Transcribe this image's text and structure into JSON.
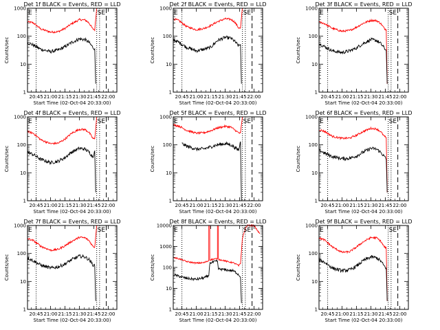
{
  "colors": {
    "events": "#000000",
    "lld": "#ff0000",
    "axes": "#000000",
    "background": "#ffffff"
  },
  "chart_data": [
    {
      "type": "line",
      "title": "Det 1f BLACK = Events, RED = LLD",
      "xlabel": "Start Time (02-Oct-04 20:33:00)",
      "ylabel": "Counts/sec",
      "yscale": "log",
      "ylim": [
        1,
        1000
      ],
      "ytick_labels": [
        "1",
        "10",
        "100",
        "1000"
      ],
      "xlim": [
        "20:36",
        "22:09"
      ],
      "xtick_labels": [
        "20:45",
        "21:00",
        "21:15",
        "21:30",
        "21:45",
        "22:00"
      ],
      "markers": [
        "E",
        "SE"
      ],
      "vlines": [
        "20:45",
        "21:48",
        "21:51",
        "21:58"
      ],
      "series": [
        {
          "name": "LLD",
          "color": "red",
          "x": [
            "20:36",
            "20:42",
            "20:50",
            "21:00",
            "21:08",
            "21:15",
            "21:22",
            "21:30",
            "21:36",
            "21:40",
            "21:44",
            "21:46",
            "21:48"
          ],
          "y": [
            330,
            300,
            180,
            140,
            145,
            190,
            280,
            390,
            380,
            300,
            180,
            170,
            1000
          ]
        },
        {
          "name": "Events",
          "color": "black",
          "x": [
            "20:36",
            "20:42",
            "20:50",
            "21:00",
            "21:08",
            "21:15",
            "21:22",
            "21:30",
            "21:36",
            "21:40",
            "21:44",
            "21:46",
            "21:47"
          ],
          "y": [
            60,
            48,
            34,
            28,
            32,
            42,
            60,
            80,
            75,
            60,
            40,
            35,
            2
          ]
        }
      ]
    },
    {
      "type": "line",
      "title": "Det 2f BLACK = Events, RED = LLD",
      "xlabel": "Start Time (02-Oct-04 20:33:00)",
      "ylabel": "Counts/sec",
      "yscale": "log",
      "ylim": [
        1,
        1000
      ],
      "ytick_labels": [
        "1",
        "10",
        "100",
        "1000"
      ],
      "xlim": [
        "20:36",
        "22:09"
      ],
      "xtick_labels": [
        "20:45",
        "21:00",
        "21:15",
        "21:30",
        "21:45",
        "22:00"
      ],
      "markers": [
        "E",
        "SE"
      ],
      "vlines": [
        "20:45",
        "21:48",
        "21:51",
        "21:58"
      ],
      "series": [
        {
          "name": "LLD",
          "color": "red",
          "x": [
            "20:36",
            "20:42",
            "20:50",
            "21:00",
            "21:08",
            "21:15",
            "21:22",
            "21:30",
            "21:36",
            "21:40",
            "21:44",
            "21:46",
            "21:48"
          ],
          "y": [
            420,
            360,
            220,
            170,
            190,
            240,
            330,
            420,
            400,
            320,
            200,
            190,
            1000
          ]
        },
        {
          "name": "Events",
          "color": "black",
          "x": [
            "20:36",
            "20:42",
            "20:50",
            "21:00",
            "21:08",
            "21:15",
            "21:22",
            "21:30",
            "21:36",
            "21:40",
            "21:44",
            "21:46",
            "21:47"
          ],
          "y": [
            75,
            60,
            40,
            30,
            34,
            40,
            70,
            90,
            85,
            65,
            45,
            50,
            2
          ]
        }
      ]
    },
    {
      "type": "line",
      "title": "Det 3f BLACK = Events, RED = LLD",
      "xlabel": "Start Time (02-Oct-04 20:33:00)",
      "ylabel": "Counts/sec",
      "yscale": "log",
      "ylim": [
        1,
        1000
      ],
      "ytick_labels": [
        "1",
        "10",
        "100",
        "1000"
      ],
      "xlim": [
        "20:36",
        "22:09"
      ],
      "xtick_labels": [
        "20:45",
        "21:00",
        "21:15",
        "21:30",
        "21:45",
        "22:00"
      ],
      "markers": [
        "E",
        "SE"
      ],
      "vlines": [
        "20:45",
        "21:48",
        "21:51",
        "21:58"
      ],
      "series": [
        {
          "name": "LLD",
          "color": "red",
          "x": [
            "20:36",
            "20:42",
            "20:50",
            "21:00",
            "21:08",
            "21:15",
            "21:22",
            "21:30",
            "21:36",
            "21:40",
            "21:44",
            "21:46",
            "21:47"
          ],
          "y": [
            320,
            280,
            190,
            150,
            160,
            210,
            290,
            370,
            360,
            290,
            190,
            170,
            2
          ]
        },
        {
          "name": "Events",
          "color": "black",
          "x": [
            "20:36",
            "20:42",
            "20:50",
            "21:00",
            "21:08",
            "21:15",
            "21:22",
            "21:30",
            "21:36",
            "21:40",
            "21:44",
            "21:46",
            "21:47"
          ],
          "y": [
            55,
            42,
            30,
            26,
            30,
            38,
            55,
            75,
            70,
            55,
            38,
            30,
            2
          ]
        }
      ]
    },
    {
      "type": "line",
      "title": "Det 4f BLACK = Events, RED = LLD",
      "xlabel": "Start Time (02-Oct-04 20:33:00)",
      "ylabel": "Counts/sec",
      "yscale": "log",
      "ylim": [
        1,
        1000
      ],
      "ytick_labels": [
        "1",
        "10",
        "100",
        "1000"
      ],
      "xlim": [
        "20:36",
        "22:09"
      ],
      "xtick_labels": [
        "20:45",
        "21:00",
        "21:15",
        "21:30",
        "21:45",
        "22:00"
      ],
      "markers": [
        "E",
        "SE"
      ],
      "vlines": [
        "20:45",
        "21:48",
        "21:51",
        "21:58"
      ],
      "series": [
        {
          "name": "LLD",
          "color": "red",
          "x": [
            "20:36",
            "20:42",
            "20:50",
            "21:00",
            "21:08",
            "21:15",
            "21:22",
            "21:30",
            "21:36",
            "21:40",
            "21:44",
            "21:46",
            "21:48"
          ],
          "y": [
            300,
            260,
            150,
            110,
            115,
            160,
            260,
            360,
            350,
            280,
            170,
            160,
            1000
          ]
        },
        {
          "name": "Events",
          "color": "black",
          "x": [
            "20:36",
            "20:42",
            "20:50",
            "21:00",
            "21:08",
            "21:15",
            "21:22",
            "21:30",
            "21:36",
            "21:40",
            "21:44",
            "21:46",
            "21:47"
          ],
          "y": [
            55,
            45,
            30,
            23,
            26,
            35,
            55,
            75,
            70,
            55,
            38,
            60,
            2
          ]
        }
      ]
    },
    {
      "type": "line",
      "title": "Det 5f BLACK = Events, RED = LLD",
      "xlabel": "Start Time (02-Oct-04 20:33:00)",
      "ylabel": "Counts/sec",
      "yscale": "log",
      "ylim": [
        1,
        1000
      ],
      "ytick_labels": [
        "1",
        "10",
        "100",
        "1000"
      ],
      "xlim": [
        "20:36",
        "22:09"
      ],
      "xtick_labels": [
        "20:45",
        "21:00",
        "21:15",
        "21:30",
        "21:45",
        "22:00"
      ],
      "markers": [
        "E",
        "SE"
      ],
      "vlines": [
        "21:48",
        "21:51",
        "21:58"
      ],
      "series": [
        {
          "name": "LLD",
          "color": "red",
          "x": [
            "20:36",
            "20:42",
            "20:50",
            "21:00",
            "21:08",
            "21:15",
            "21:22",
            "21:30",
            "21:36",
            "21:40",
            "21:44",
            "21:46",
            "21:48"
          ],
          "y": [
            520,
            470,
            330,
            260,
            270,
            320,
            400,
            460,
            430,
            340,
            270,
            260,
            1000
          ]
        },
        {
          "name": "Events",
          "color": "black",
          "x": [
            "20:45",
            "20:50",
            "21:00",
            "21:08",
            "21:15",
            "21:22",
            "21:30",
            "21:36",
            "21:40",
            "21:44",
            "21:46",
            "21:47"
          ],
          "y": [
            110,
            90,
            70,
            72,
            85,
            100,
            110,
            100,
            80,
            65,
            130,
            1
          ]
        }
      ]
    },
    {
      "type": "line",
      "title": "Det 6f BLACK = Events, RED = LLD",
      "xlabel": "Start Time (02-Oct-04 20:33:00)",
      "ylabel": "Counts/sec",
      "yscale": "log",
      "ylim": [
        1,
        1000
      ],
      "ytick_labels": [
        "1",
        "10",
        "100",
        "1000"
      ],
      "xlim": [
        "20:36",
        "22:09"
      ],
      "xtick_labels": [
        "20:45",
        "21:00",
        "21:15",
        "21:30",
        "21:45",
        "22:00"
      ],
      "markers": [
        "E",
        "SE"
      ],
      "vlines": [
        "20:45",
        "21:48",
        "21:51",
        "21:58"
      ],
      "series": [
        {
          "name": "LLD",
          "color": "red",
          "x": [
            "20:36",
            "20:42",
            "20:50",
            "21:00",
            "21:08",
            "21:15",
            "21:22",
            "21:30",
            "21:36",
            "21:40",
            "21:44",
            "21:46",
            "21:47"
          ],
          "y": [
            350,
            300,
            200,
            170,
            175,
            220,
            300,
            390,
            370,
            300,
            200,
            180,
            2
          ]
        },
        {
          "name": "Events",
          "color": "black",
          "x": [
            "20:36",
            "20:42",
            "20:50",
            "21:00",
            "21:08",
            "21:15",
            "21:22",
            "21:30",
            "21:36",
            "21:40",
            "21:44",
            "21:46",
            "21:47"
          ],
          "y": [
            65,
            50,
            38,
            32,
            33,
            40,
            55,
            75,
            70,
            55,
            38,
            30,
            2
          ]
        }
      ]
    },
    {
      "type": "line",
      "title": "Det 7f BLACK = Events, RED = LLD",
      "xlabel": "Start Time (02-Oct-04 20:33:00)",
      "ylabel": "Counts/sec",
      "yscale": "log",
      "ylim": [
        1,
        1000
      ],
      "ytick_labels": [
        "1",
        "10",
        "100",
        "1000"
      ],
      "xlim": [
        "20:36",
        "22:09"
      ],
      "xtick_labels": [
        "20:45",
        "21:00",
        "21:15",
        "21:30",
        "21:45",
        "22:00"
      ],
      "markers": [
        "E",
        "SE"
      ],
      "vlines": [
        "20:45",
        "21:48",
        "21:51",
        "21:58"
      ],
      "series": [
        {
          "name": "LLD",
          "color": "red",
          "x": [
            "20:36",
            "20:42",
            "20:50",
            "21:00",
            "21:08",
            "21:15",
            "21:22",
            "21:30",
            "21:36",
            "21:40",
            "21:44",
            "21:46",
            "21:48"
          ],
          "y": [
            340,
            290,
            180,
            130,
            140,
            190,
            270,
            380,
            360,
            290,
            180,
            170,
            1000
          ]
        },
        {
          "name": "Events",
          "color": "black",
          "x": [
            "20:36",
            "20:42",
            "20:50",
            "21:00",
            "21:08",
            "21:15",
            "21:22",
            "21:30",
            "21:36",
            "21:40",
            "21:44",
            "21:46",
            "21:47"
          ],
          "y": [
            70,
            55,
            38,
            30,
            33,
            42,
            60,
            80,
            75,
            60,
            40,
            35,
            2
          ]
        }
      ]
    },
    {
      "type": "line",
      "title": "Det 8f BLACK = Events, RED = LLD",
      "xlabel": "Start Time (02-Oct-04 20:33:00)",
      "ylabel": "Counts/sec",
      "yscale": "log",
      "ylim": [
        1,
        10000
      ],
      "ytick_labels": [
        "1",
        "10",
        "100",
        "1000",
        "10000"
      ],
      "xlim": [
        "20:36",
        "22:09"
      ],
      "xtick_labels": [
        "20:45",
        "21:00",
        "21:15",
        "21:30",
        "21:45",
        "22:00"
      ],
      "markers": [
        "E",
        "SE"
      ],
      "vlines": [
        "20:45",
        "21:48",
        "21:51",
        "21:58"
      ],
      "series": [
        {
          "name": "LLD",
          "color": "red",
          "x": [
            "20:36",
            "20:42",
            "20:50",
            "21:00",
            "21:08",
            "21:13",
            "21:13",
            "21:14",
            "21:14",
            "21:18",
            "21:22",
            "21:22",
            "21:23",
            "21:23",
            "21:28",
            "21:32",
            "21:38",
            "21:42",
            "21:44",
            "21:46",
            "21:48",
            "21:51",
            "21:53",
            "22:00",
            "22:06"
          ],
          "y": [
            300,
            260,
            190,
            160,
            170,
            210,
            10000,
            10000,
            230,
            250,
            260,
            10000,
            10000,
            240,
            220,
            190,
            170,
            140,
            120,
            150,
            2500,
            7000,
            10000,
            10000,
            4000
          ]
        },
        {
          "name": "Events",
          "color": "black",
          "x": [
            "20:36",
            "20:42",
            "20:50",
            "21:00",
            "21:08",
            "21:13",
            "21:14",
            "21:18",
            "21:22",
            "21:23",
            "21:28",
            "21:32",
            "21:38",
            "21:42",
            "21:44",
            "21:46",
            "21:47"
          ],
          "y": [
            45,
            38,
            30,
            27,
            32,
            40,
            160,
            180,
            200,
            85,
            80,
            75,
            70,
            55,
            45,
            35,
            2
          ]
        }
      ]
    },
    {
      "type": "line",
      "title": "Det 9f BLACK = Events, RED = LLD",
      "xlabel": "Start Time (02-Oct-04 20:33:00)",
      "ylabel": "Counts/sec",
      "yscale": "log",
      "ylim": [
        1,
        1000
      ],
      "ytick_labels": [
        "1",
        "10",
        "100",
        "1000"
      ],
      "xlim": [
        "20:36",
        "22:09"
      ],
      "xtick_labels": [
        "20:45",
        "21:00",
        "21:15",
        "21:30",
        "21:45",
        "22:00"
      ],
      "markers": [
        "E",
        "SE"
      ],
      "vlines": [
        "20:45",
        "21:48",
        "21:51",
        "21:58"
      ],
      "series": [
        {
          "name": "LLD",
          "color": "red",
          "x": [
            "20:36",
            "20:42",
            "20:50",
            "21:00",
            "21:08",
            "21:15",
            "21:22",
            "21:30",
            "21:36",
            "21:40",
            "21:44",
            "21:46",
            "21:47"
          ],
          "y": [
            360,
            300,
            170,
            110,
            115,
            170,
            260,
            370,
            360,
            280,
            170,
            160,
            2
          ]
        },
        {
          "name": "Events",
          "color": "black",
          "x": [
            "20:36",
            "20:42",
            "20:50",
            "21:00",
            "21:08",
            "21:15",
            "21:22",
            "21:30",
            "21:36",
            "21:40",
            "21:44",
            "21:46",
            "21:47"
          ],
          "y": [
            60,
            48,
            30,
            24,
            26,
            35,
            55,
            75,
            70,
            55,
            35,
            30,
            2
          ]
        }
      ]
    }
  ]
}
